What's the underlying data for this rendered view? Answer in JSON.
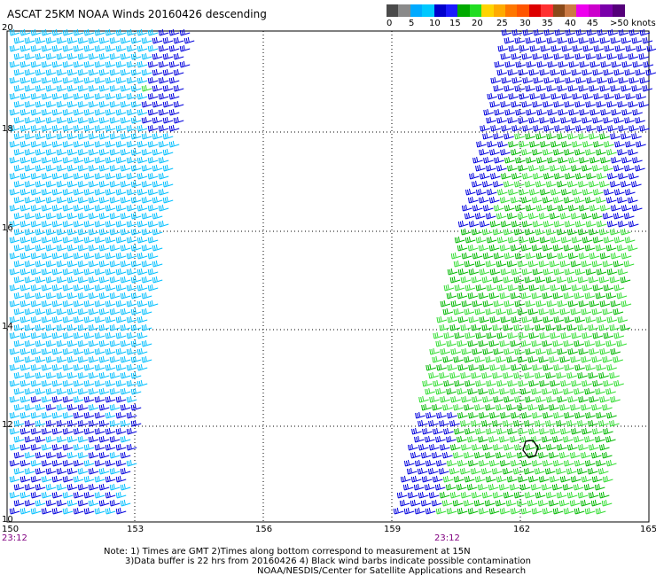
{
  "header": {
    "title": "ASCAT 25KM NOAA Winds 20160426 descending"
  },
  "colorbar": {
    "segments": [
      "#4a4a4a",
      "#8a8a8a",
      "#00aaff",
      "#00c8ff",
      "#0000cc",
      "#1a1aff",
      "#00aa00",
      "#22dd22",
      "#ffd400",
      "#ffaa00",
      "#ff7700",
      "#ff5500",
      "#dd0000",
      "#ff3030",
      "#8a4a1a",
      "#cc7a44",
      "#ee00ee",
      "#cc00cc",
      "#7a00aa",
      "#55007a"
    ],
    "labels": [
      "0",
      "5",
      "10",
      "15",
      "20",
      "25",
      "30",
      "35",
      "40",
      "45",
      ">50 knots"
    ]
  },
  "axes": {
    "lon_labels": [
      "150",
      "153",
      "156",
      "159",
      "162",
      "165"
    ],
    "lat_labels": [
      "20",
      "18",
      "16",
      "14",
      "12",
      "10"
    ]
  },
  "swaths": {
    "left_time": "23:12",
    "right_time": "23:12"
  },
  "notes": {
    "line1": "Note: 1) Times are GMT 2)Times along bottom correspond to measurement at 15N",
    "line2": "3)Data buffer is 22 hrs from 20160426 4) Black wind barbs indicate possible contamination",
    "line3": "NOAA/NESDIS/Center for Satellite Applications and Research"
  },
  "legend_colors": {
    "barb_low": "#00bfff",
    "barb_mid": "#0000dd",
    "barb_high": "#00b800",
    "barb_high2": "#33dd33",
    "barb_contam": "#000000"
  }
}
